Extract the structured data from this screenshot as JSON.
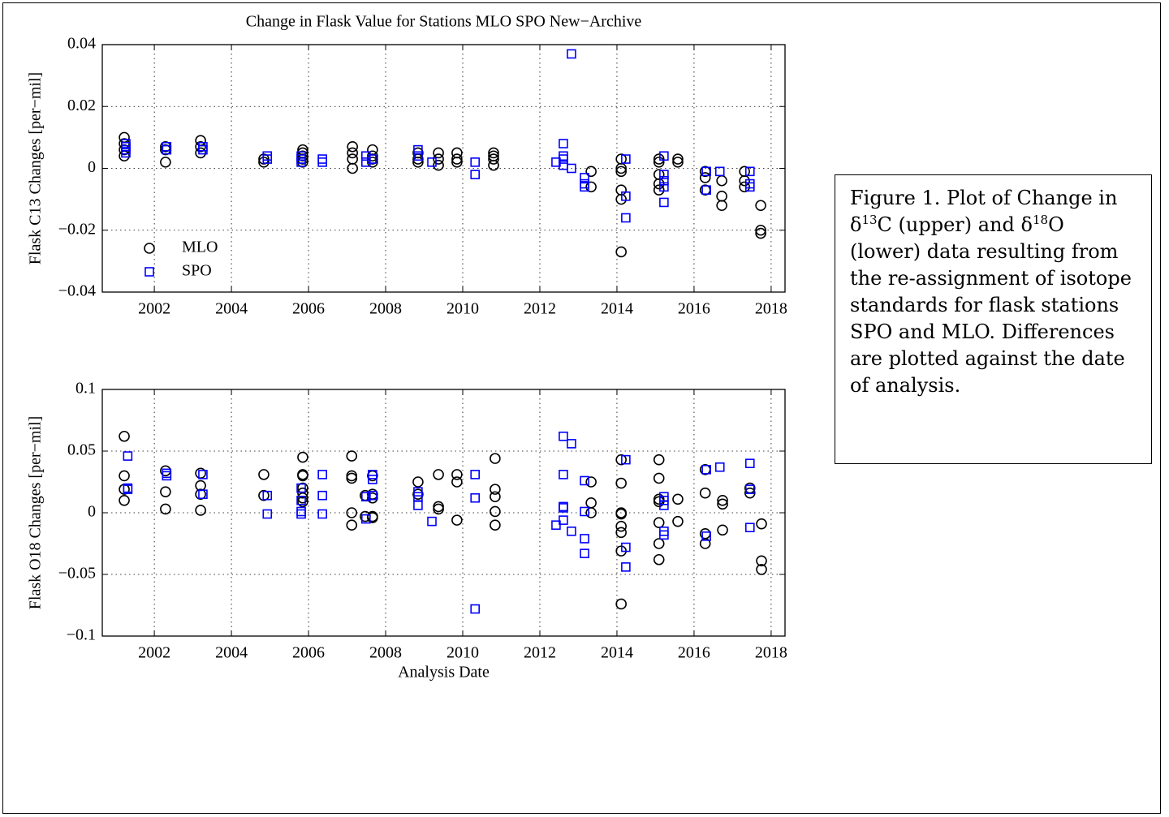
{
  "chart_data": [
    {
      "type": "scatter",
      "title": "Change in Flask Value for Stations MLO SPO New−Archive",
      "ylabel": "Flask C13 Changes [per−mil]",
      "xlim": [
        2000.65,
        2018.36
      ],
      "xticks": [
        2002,
        2004,
        2006,
        2008,
        2010,
        2012,
        2014,
        2016,
        2018
      ],
      "ylim": [
        -0.04,
        0.04
      ],
      "yticks": [
        {
          "value": -0.04,
          "label": "−0.04"
        },
        {
          "value": -0.02,
          "label": "−0.02"
        },
        0,
        0.02,
        0.04
      ],
      "grid": true,
      "legend": "lower left",
      "series": [
        {
          "name": "MLO",
          "color": "#000000",
          "marker": "circle",
          "x": [
            2001.22,
            2001.22,
            2001.22,
            2001.22,
            2002.29,
            2002.29,
            2002.29,
            2003.2,
            2003.2,
            2003.2,
            2004.84,
            2004.84,
            2005.85,
            2005.85,
            2005.85,
            2005.85,
            2005.85,
            2007.14,
            2007.14,
            2007.14,
            2007.14,
            2007.66,
            2007.66,
            2007.66,
            2007.66,
            2008.84,
            2008.84,
            2008.84,
            2009.37,
            2009.37,
            2009.37,
            2009.85,
            2009.85,
            2009.85,
            2010.8,
            2010.8,
            2010.8,
            2010.8,
            2013.33,
            2013.33,
            2014.11,
            2014.11,
            2014.11,
            2014.11,
            2014.11,
            2014.11,
            2015.09,
            2015.09,
            2015.09,
            2015.09,
            2015.09,
            2015.58,
            2015.58,
            2016.29,
            2016.29,
            2016.29,
            2016.72,
            2016.72,
            2016.72,
            2017.31,
            2017.31,
            2017.31,
            2017.73,
            2017.73,
            2017.73
          ],
          "values": [
            0.01,
            0.008,
            0.006,
            0.004,
            0.007,
            0.002,
            0.006,
            0.009,
            0.007,
            0.005,
            0.003,
            0.002,
            0.006,
            0.005,
            0.004,
            0.003,
            0.002,
            0.007,
            0.003,
            0.0,
            0.005,
            0.006,
            0.004,
            0.003,
            0.002,
            0.003,
            0.005,
            0.002,
            0.005,
            0.003,
            0.001,
            0.005,
            0.003,
            0.002,
            0.005,
            0.004,
            0.003,
            0.001,
            -0.001,
            -0.006,
            0.003,
            0.0,
            -0.001,
            -0.007,
            -0.01,
            -0.027,
            0.003,
            0.002,
            -0.002,
            -0.005,
            -0.007,
            0.003,
            0.002,
            -0.001,
            -0.003,
            -0.007,
            -0.004,
            -0.009,
            -0.012,
            -0.001,
            -0.004,
            -0.006,
            -0.012,
            -0.02,
            -0.021
          ]
        },
        {
          "name": "SPO",
          "color": "#0000ff",
          "marker": "square",
          "x": [
            2001.26,
            2001.26,
            2001.26,
            2001.26,
            2002.32,
            2002.32,
            2003.26,
            2003.26,
            2004.93,
            2004.93,
            2005.81,
            2005.81,
            2005.81,
            2006.36,
            2006.36,
            2007.49,
            2007.49,
            2007.64,
            2008.84,
            2008.84,
            2009.2,
            2010.32,
            2010.32,
            2012.42,
            2012.61,
            2012.61,
            2012.61,
            2012.61,
            2012.82,
            2012.82,
            2013.16,
            2013.16,
            2013.16,
            2014.23,
            2014.23,
            2014.23,
            2015.22,
            2015.22,
            2015.22,
            2015.22,
            2015.22,
            2016.32,
            2016.32,
            2016.67,
            2017.45,
            2017.45,
            2017.45
          ],
          "values": [
            0.008,
            0.007,
            0.006,
            0.005,
            0.007,
            0.006,
            0.007,
            0.006,
            0.004,
            0.003,
            0.004,
            0.003,
            0.002,
            0.003,
            0.002,
            0.004,
            0.002,
            0.003,
            0.006,
            0.004,
            0.002,
            0.002,
            -0.002,
            0.002,
            0.008,
            0.004,
            0.003,
            0.001,
            0.037,
            0.0,
            -0.003,
            -0.005,
            -0.006,
            0.003,
            -0.009,
            -0.016,
            0.004,
            -0.002,
            -0.004,
            -0.006,
            -0.011,
            -0.001,
            -0.007,
            -0.001,
            -0.001,
            -0.005,
            -0.006
          ]
        }
      ]
    },
    {
      "type": "scatter",
      "ylabel": "Flask O18 Changes [per−mil]",
      "xlabel": "Analysis Date",
      "xlim": [
        2000.65,
        2018.36
      ],
      "xticks": [
        2002,
        2004,
        2006,
        2008,
        2010,
        2012,
        2014,
        2016,
        2018
      ],
      "ylim": [
        -0.1,
        0.1
      ],
      "yticks": [
        {
          "value": -0.1,
          "label": "−0.1"
        },
        {
          "value": -0.05,
          "label": "−0.05"
        },
        0,
        0.05,
        0.1
      ],
      "grid": true,
      "series": [
        {
          "color": "#000000",
          "marker": "circle",
          "x": [
            2001.22,
            2001.22,
            2001.22,
            2001.22,
            2002.29,
            2002.29,
            2002.29,
            2003.2,
            2003.2,
            2003.2,
            2003.2,
            2004.84,
            2004.84,
            2005.85,
            2005.85,
            2005.85,
            2005.85,
            2005.85,
            2005.85,
            2005.85,
            2007.12,
            2007.12,
            2007.12,
            2007.12,
            2007.12,
            2007.47,
            2007.47,
            2007.66,
            2007.66,
            2007.66,
            2007.66,
            2007.66,
            2008.84,
            2008.84,
            2009.37,
            2009.37,
            2009.37,
            2009.85,
            2009.85,
            2009.85,
            2010.84,
            2010.84,
            2010.84,
            2010.84,
            2010.84,
            2013.33,
            2013.33,
            2013.33,
            2014.11,
            2014.11,
            2014.11,
            2014.11,
            2014.11,
            2014.11,
            2014.11,
            2014.11,
            2015.09,
            2015.09,
            2015.09,
            2015.09,
            2015.09,
            2015.09,
            2015.09,
            2015.58,
            2015.58,
            2016.29,
            2016.29,
            2016.29,
            2016.29,
            2016.74,
            2016.74,
            2016.74,
            2017.45,
            2017.45,
            2017.75,
            2017.75,
            2017.75
          ],
          "values": [
            0.062,
            0.03,
            0.019,
            0.01,
            0.034,
            0.017,
            0.003,
            0.032,
            0.022,
            0.015,
            0.002,
            0.031,
            0.014,
            0.045,
            0.031,
            0.03,
            0.02,
            0.016,
            0.012,
            0.009,
            0.046,
            0.03,
            0.028,
            0.0,
            -0.01,
            0.014,
            -0.003,
            0.03,
            0.015,
            0.012,
            -0.003,
            -0.004,
            0.025,
            0.015,
            0.031,
            0.005,
            0.003,
            0.031,
            0.025,
            -0.006,
            0.044,
            0.019,
            0.013,
            0.001,
            -0.01,
            0.025,
            0.008,
            0.0,
            0.043,
            0.024,
            0.0,
            -0.001,
            -0.011,
            -0.016,
            -0.031,
            -0.074,
            0.043,
            0.028,
            0.011,
            0.009,
            -0.008,
            -0.025,
            -0.038,
            0.011,
            -0.007,
            0.035,
            0.016,
            -0.017,
            -0.025,
            0.01,
            0.007,
            -0.014,
            0.02,
            0.016,
            -0.009,
            -0.039,
            -0.046
          ]
        },
        {
          "color": "#0000ff",
          "marker": "square",
          "x": [
            2001.31,
            2001.31,
            2001.31,
            2002.32,
            2002.32,
            2003.26,
            2003.26,
            2004.93,
            2004.93,
            2005.81,
            2005.81,
            2005.81,
            2005.81,
            2006.36,
            2006.36,
            2006.36,
            2007.49,
            2007.49,
            2007.66,
            2007.66,
            2007.66,
            2008.84,
            2008.84,
            2008.84,
            2009.2,
            2010.32,
            2010.32,
            2010.32,
            2012.42,
            2012.61,
            2012.61,
            2012.61,
            2012.61,
            2012.61,
            2012.82,
            2012.82,
            2013.16,
            2013.16,
            2013.16,
            2013.16,
            2014.23,
            2014.23,
            2014.23,
            2015.22,
            2015.22,
            2015.22,
            2015.22,
            2015.22,
            2016.32,
            2016.32,
            2016.67,
            2017.45,
            2017.45,
            2017.45
          ],
          "values": [
            0.046,
            0.02,
            0.019,
            0.032,
            0.03,
            0.031,
            0.015,
            0.014,
            -0.001,
            0.02,
            0.01,
            0.001,
            -0.001,
            0.031,
            0.014,
            -0.001,
            0.013,
            -0.005,
            0.031,
            0.027,
            0.014,
            0.017,
            0.013,
            0.006,
            -0.007,
            0.031,
            0.012,
            -0.078,
            -0.01,
            0.062,
            0.031,
            0.005,
            0.004,
            -0.006,
            0.056,
            -0.015,
            0.026,
            0.001,
            -0.021,
            -0.033,
            0.043,
            -0.028,
            -0.044,
            0.013,
            0.01,
            0.006,
            -0.015,
            -0.018,
            0.035,
            -0.019,
            0.037,
            0.04,
            0.019,
            -0.012
          ]
        }
      ]
    }
  ],
  "caption": [
    "Figure 1. Plot of Change in δ",
    "13",
    "C (upper) and δ",
    "18",
    "O (lower) data resulting from the re-assignment of isotope standards for flask stations SPO and MLO. Differences are plotted against the date of analysis."
  ]
}
